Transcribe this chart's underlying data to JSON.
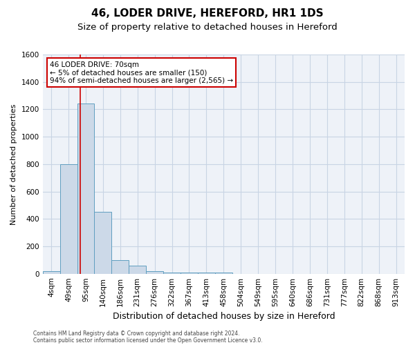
{
  "title1": "46, LODER DRIVE, HEREFORD, HR1 1DS",
  "title2": "Size of property relative to detached houses in Hereford",
  "xlabel": "Distribution of detached houses by size in Hereford",
  "ylabel": "Number of detached properties",
  "footnote1": "Contains HM Land Registry data © Crown copyright and database right 2024.",
  "footnote2": "Contains public sector information licensed under the Open Government Licence v3.0.",
  "bar_labels": [
    "4sqm",
    "49sqm",
    "95sqm",
    "140sqm",
    "186sqm",
    "231sqm",
    "276sqm",
    "322sqm",
    "367sqm",
    "413sqm",
    "458sqm",
    "504sqm",
    "549sqm",
    "595sqm",
    "640sqm",
    "686sqm",
    "731sqm",
    "777sqm",
    "822sqm",
    "868sqm",
    "913sqm"
  ],
  "bar_values": [
    20,
    800,
    1240,
    450,
    100,
    60,
    20,
    10,
    8,
    8,
    8,
    0,
    0,
    0,
    0,
    0,
    0,
    0,
    0,
    0,
    0
  ],
  "bar_color": "#ccd9e8",
  "bar_edge_color": "#5f9ec0",
  "vline_x": 1.7,
  "vline_color": "#cc0000",
  "annotation_text": "46 LODER DRIVE: 70sqm\n← 5% of detached houses are smaller (150)\n94% of semi-detached houses are larger (2,565) →",
  "annotation_box_color": "#ffffff",
  "annotation_box_edge": "#cc0000",
  "ylim": [
    0,
    1600
  ],
  "yticks": [
    0,
    200,
    400,
    600,
    800,
    1000,
    1200,
    1400,
    1600
  ],
  "grid_color": "#c8d4e4",
  "bg_color": "#eef2f8",
  "title1_fontsize": 11,
  "title2_fontsize": 9.5,
  "xlabel_fontsize": 9,
  "ylabel_fontsize": 8,
  "tick_fontsize": 7.5,
  "footnote_fontsize": 5.5
}
